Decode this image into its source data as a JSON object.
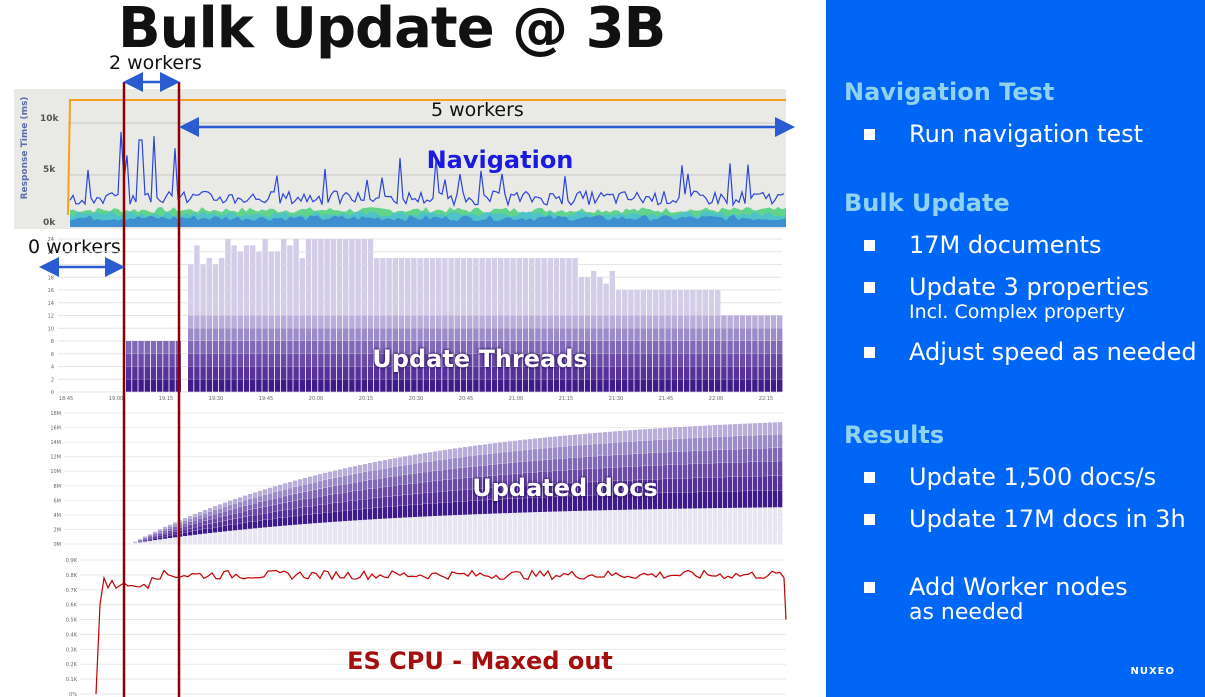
{
  "slide": {
    "title": "Bulk Update @ 3B",
    "labels": {
      "two_workers": "2 workers",
      "five_workers": "5 workers",
      "zero_workers": "0 workers"
    }
  },
  "sidebar": {
    "sections": [
      {
        "heading": "Navigation Test",
        "bullets": [
          {
            "text": "Run navigation test"
          }
        ]
      },
      {
        "heading": "Bulk Update",
        "bullets": [
          {
            "text": "17M documents"
          },
          {
            "text": "Update 3 properties",
            "sub": "Incl. Complex property"
          },
          {
            "text": "Adjust speed as needed"
          }
        ]
      },
      {
        "heading": "Results",
        "bullets": [
          {
            "text": "Update 1,500 docs/s"
          },
          {
            "text": "Update 17M docs in 3h"
          },
          {
            "text": "Add Worker nodes",
            "sub": "as needed"
          }
        ]
      }
    ],
    "logo": "NUXEO"
  },
  "colors": {
    "accent_blue": "#0066f5",
    "heading_cyan": "#8fd3f0",
    "marker_red": "#8b0000",
    "cpu_line": "#c00000",
    "purple_dark": "#3f1a8a"
  },
  "chart_data": [
    {
      "type": "area",
      "title": "Navigation",
      "ylabel": "Response Time (ms)",
      "yticks": [
        "0k",
        "5k",
        "10k"
      ],
      "ylim": [
        0,
        12000
      ],
      "description_series": [
        {
          "name": "max",
          "values": [
            12000
          ]
        },
        {
          "name": "response",
          "values": [
            2500,
            1500,
            1800,
            2600,
            8200,
            3000,
            2200,
            2800,
            2400,
            2200,
            3200,
            2500,
            2300,
            2600,
            2400,
            2200,
            2500,
            2300
          ]
        }
      ]
    },
    {
      "type": "bar",
      "title": "Update Threads",
      "yticks": [
        "0",
        "2",
        "4",
        "6",
        "8",
        "10",
        "12",
        "14",
        "16",
        "18",
        "20",
        "22",
        "24"
      ],
      "xticks": [
        "18:45",
        "19:00",
        "19:15",
        "19:30",
        "19:45",
        "20:00",
        "20:15",
        "20:30",
        "20:45",
        "21:00",
        "21:15",
        "21:30",
        "21:45",
        "22:00",
        "22:15"
      ],
      "ylim": [
        0,
        24
      ],
      "series": [
        {
          "name": "threads",
          "x": [
            "19:00",
            "19:15",
            "19:30",
            "20:45",
            "21:30",
            "22:00"
          ],
          "values": [
            8,
            8,
            24,
            24,
            16,
            12
          ]
        }
      ]
    },
    {
      "type": "area",
      "title": "Updated docs",
      "yticks": [
        "0M",
        "2M",
        "4M",
        "6M",
        "8M",
        "10M",
        "12M",
        "14M",
        "16M",
        "18M"
      ],
      "ylim": [
        0,
        18
      ],
      "series": [
        {
          "name": "updated",
          "x": [
            "19:00",
            "19:30",
            "20:00",
            "20:30",
            "21:00",
            "21:30",
            "22:00",
            "22:15"
          ],
          "values": [
            0,
            2,
            5,
            8.5,
            11.5,
            14,
            16,
            16.3
          ]
        }
      ]
    },
    {
      "type": "line",
      "title": "ES CPU - Maxed out",
      "yticks": [
        "0%",
        "0.1K",
        "0.2K",
        "0.3K",
        "0.4K",
        "0.5K",
        "0.6K",
        "0.7K",
        "0.8K",
        "0.9K"
      ],
      "ylim": [
        0,
        0.9
      ],
      "series": [
        {
          "name": "cpu",
          "x": [
            "18:45",
            "19:00",
            "19:15",
            "20:00",
            "21:00",
            "22:00",
            "22:15"
          ],
          "values": [
            0,
            0.76,
            0.82,
            0.83,
            0.83,
            0.82,
            0.5
          ]
        }
      ]
    }
  ]
}
